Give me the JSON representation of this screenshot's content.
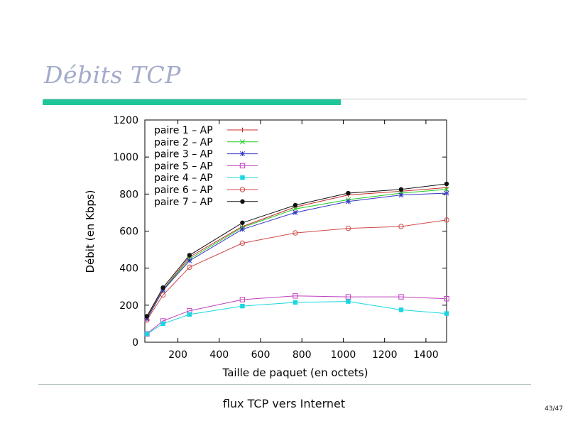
{
  "slide": {
    "title": "Débits TCP",
    "footer": "flux TCP vers Internet",
    "page": "43/47"
  },
  "colors": {
    "title": "#a3abca",
    "accent_bar": "#1ec79a",
    "rule": "#b7c6c2"
  },
  "chart_data": {
    "type": "line",
    "xlabel": "Taille de paquet (en octets)",
    "ylabel": "Débit (en Kbps)",
    "xlim": [
      40,
      1500
    ],
    "ylim": [
      0,
      1200
    ],
    "xticks": [
      200,
      400,
      600,
      800,
      1000,
      1200,
      1400
    ],
    "yticks": [
      0,
      200,
      400,
      600,
      800,
      1000,
      1200
    ],
    "grid": false,
    "legend_position": "top-left",
    "x": [
      50,
      128,
      256,
      512,
      768,
      1024,
      1280,
      1500
    ],
    "series": [
      {
        "name": "paire 1 – AP",
        "color": "#cc2b2b",
        "marker": "plus",
        "values": [
          135,
          285,
          460,
          625,
          730,
          795,
          815,
          835
        ]
      },
      {
        "name": "paire 2 – AP",
        "color": "#22cc22",
        "marker": "x",
        "values": [
          128,
          282,
          450,
          620,
          720,
          770,
          805,
          825
        ]
      },
      {
        "name": "paire 3 – AP",
        "color": "#3434c8",
        "marker": "star",
        "values": [
          125,
          280,
          440,
          610,
          700,
          760,
          795,
          805
        ]
      },
      {
        "name": "paire 5 – AP",
        "color": "#c040c0",
        "marker": "square-open",
        "values": [
          45,
          115,
          170,
          230,
          250,
          245,
          245,
          235
        ]
      },
      {
        "name": "paire 4 – AP",
        "color": "#18d6e0",
        "marker": "square-filled",
        "values": [
          45,
          100,
          150,
          195,
          215,
          220,
          175,
          155
        ]
      },
      {
        "name": "paire 6 – AP",
        "color": "#d04848",
        "marker": "circle-open",
        "values": [
          120,
          255,
          405,
          535,
          590,
          615,
          625,
          660
        ]
      },
      {
        "name": "paire 7 – AP",
        "color": "#111111",
        "marker": "circle-filled",
        "values": [
          140,
          295,
          470,
          645,
          740,
          805,
          825,
          855
        ]
      }
    ]
  }
}
